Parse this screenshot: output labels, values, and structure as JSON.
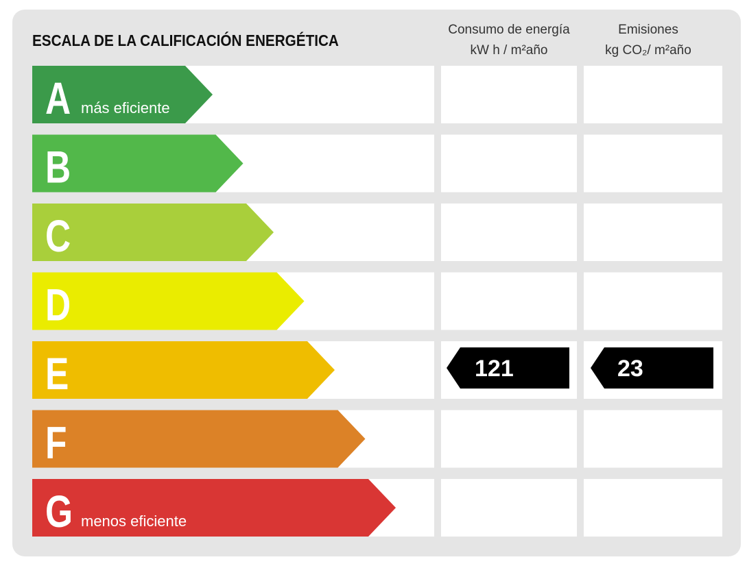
{
  "title": "ESCALA DE LA CALIFICACIÓN ENERGÉTICA",
  "columns": [
    {
      "line1": "Consumo de energía",
      "line2": "kW h / m²año"
    },
    {
      "line1": "Emisiones",
      "line2": "kg CO₂/ m²año"
    }
  ],
  "rows": [
    {
      "letter": "A",
      "label": "más eficiente",
      "color": "#3b9a4a"
    },
    {
      "letter": "B",
      "color": "#52b84a"
    },
    {
      "letter": "C",
      "color": "#a9cf3b"
    },
    {
      "letter": "D",
      "color": "#eaec00"
    },
    {
      "letter": "E",
      "color": "#efbd00",
      "consumo": 121,
      "emisiones": 23
    },
    {
      "letter": "F",
      "color": "#dc8227"
    },
    {
      "letter": "G",
      "label": "menos eficiente",
      "color": "#d93634"
    }
  ]
}
